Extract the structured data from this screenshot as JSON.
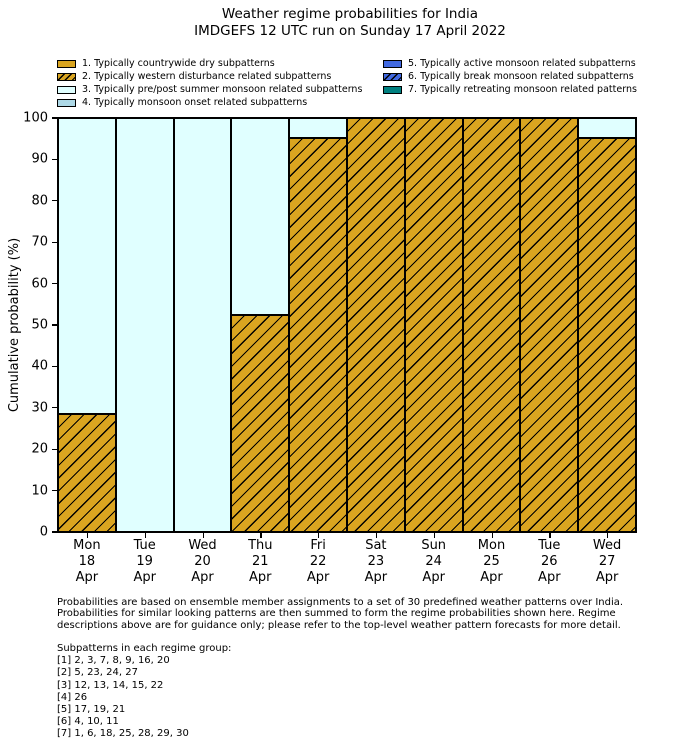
{
  "chart_data": {
    "type": "bar",
    "stacked": true,
    "title": "Weather regime probabilities for India",
    "subtitle": "IMDGEFS 12 UTC run on Sunday 17 April 2022",
    "xlabel": "",
    "ylabel": "Cumulative probability (%)",
    "ylim": [
      0,
      100
    ],
    "yticks": [
      0,
      10,
      20,
      30,
      40,
      50,
      60,
      70,
      80,
      90,
      100
    ],
    "grid": false,
    "legend_position": "upper center, two columns, above axes",
    "categories": [
      [
        "Mon",
        "18",
        "Apr"
      ],
      [
        "Tue",
        "19",
        "Apr"
      ],
      [
        "Wed",
        "20",
        "Apr"
      ],
      [
        "Thu",
        "21",
        "Apr"
      ],
      [
        "Fri",
        "22",
        "Apr"
      ],
      [
        "Sat",
        "23",
        "Apr"
      ],
      [
        "Sun",
        "24",
        "Apr"
      ],
      [
        "Mon",
        "25",
        "Apr"
      ],
      [
        "Tue",
        "26",
        "Apr"
      ],
      [
        "Wed",
        "27",
        "Apr"
      ]
    ],
    "series": [
      {
        "name": "2. Typically western disturbance related subpatterns",
        "color": "#DAA520",
        "hatch": true,
        "hatch_pattern": "/",
        "values": [
          28.6,
          0,
          0,
          52.4,
          95.2,
          100,
          100,
          100,
          100,
          95.2
        ]
      },
      {
        "name": "3. Typically pre/post summer monsoon related subpatterns",
        "color": "#E0FFFF",
        "hatch": false,
        "hatch_pattern": "",
        "values": [
          71.4,
          100,
          100,
          47.6,
          4.8,
          0,
          0,
          0,
          0,
          4.8
        ]
      }
    ]
  },
  "legend": {
    "column_break": 4,
    "items": [
      {
        "label": "1. Typically countrywide dry subpatterns",
        "color": "#DAA520",
        "hatch": false
      },
      {
        "label": "2. Typically western disturbance related subpatterns",
        "color": "#DAA520",
        "hatch": true
      },
      {
        "label": "3. Typically pre/post summer monsoon related subpatterns",
        "color": "#E0FFFF",
        "hatch": false
      },
      {
        "label": "4. Typically monsoon onset related subpatterns",
        "color": "#ADD8E6",
        "hatch": false
      },
      {
        "label": "5. Typically active monsoon related subpatterns",
        "color": "#4169E1",
        "hatch": false
      },
      {
        "label": "6. Typically break monsoon related subpatterns",
        "color": "#4169E1",
        "hatch": true
      },
      {
        "label": "7. Typically retreating monsoon related patterns",
        "color": "#008080",
        "hatch": false
      }
    ]
  },
  "footnotes": {
    "lines": [
      "Probabilities are based on ensemble member assignments to a set of 30 predefined weather patterns over India.",
      "Probabilities for similar looking patterns are then summed to form the regime probabilities shown here. Regime",
      "descriptions above are for guidance only; please refer to the top-level weather pattern forecasts for more detail."
    ]
  },
  "subpatterns": {
    "header": "Subpatterns in each regime group:",
    "lines": [
      "[1] 2, 3, 7, 8, 9, 16, 20",
      "[2] 5, 23, 24, 27",
      "[3] 12, 13, 14, 15, 22",
      "[4] 26",
      "[5] 17, 19, 21",
      "[6] 4, 10, 11",
      "[7] 1, 6, 18, 25, 28, 29, 30"
    ]
  }
}
